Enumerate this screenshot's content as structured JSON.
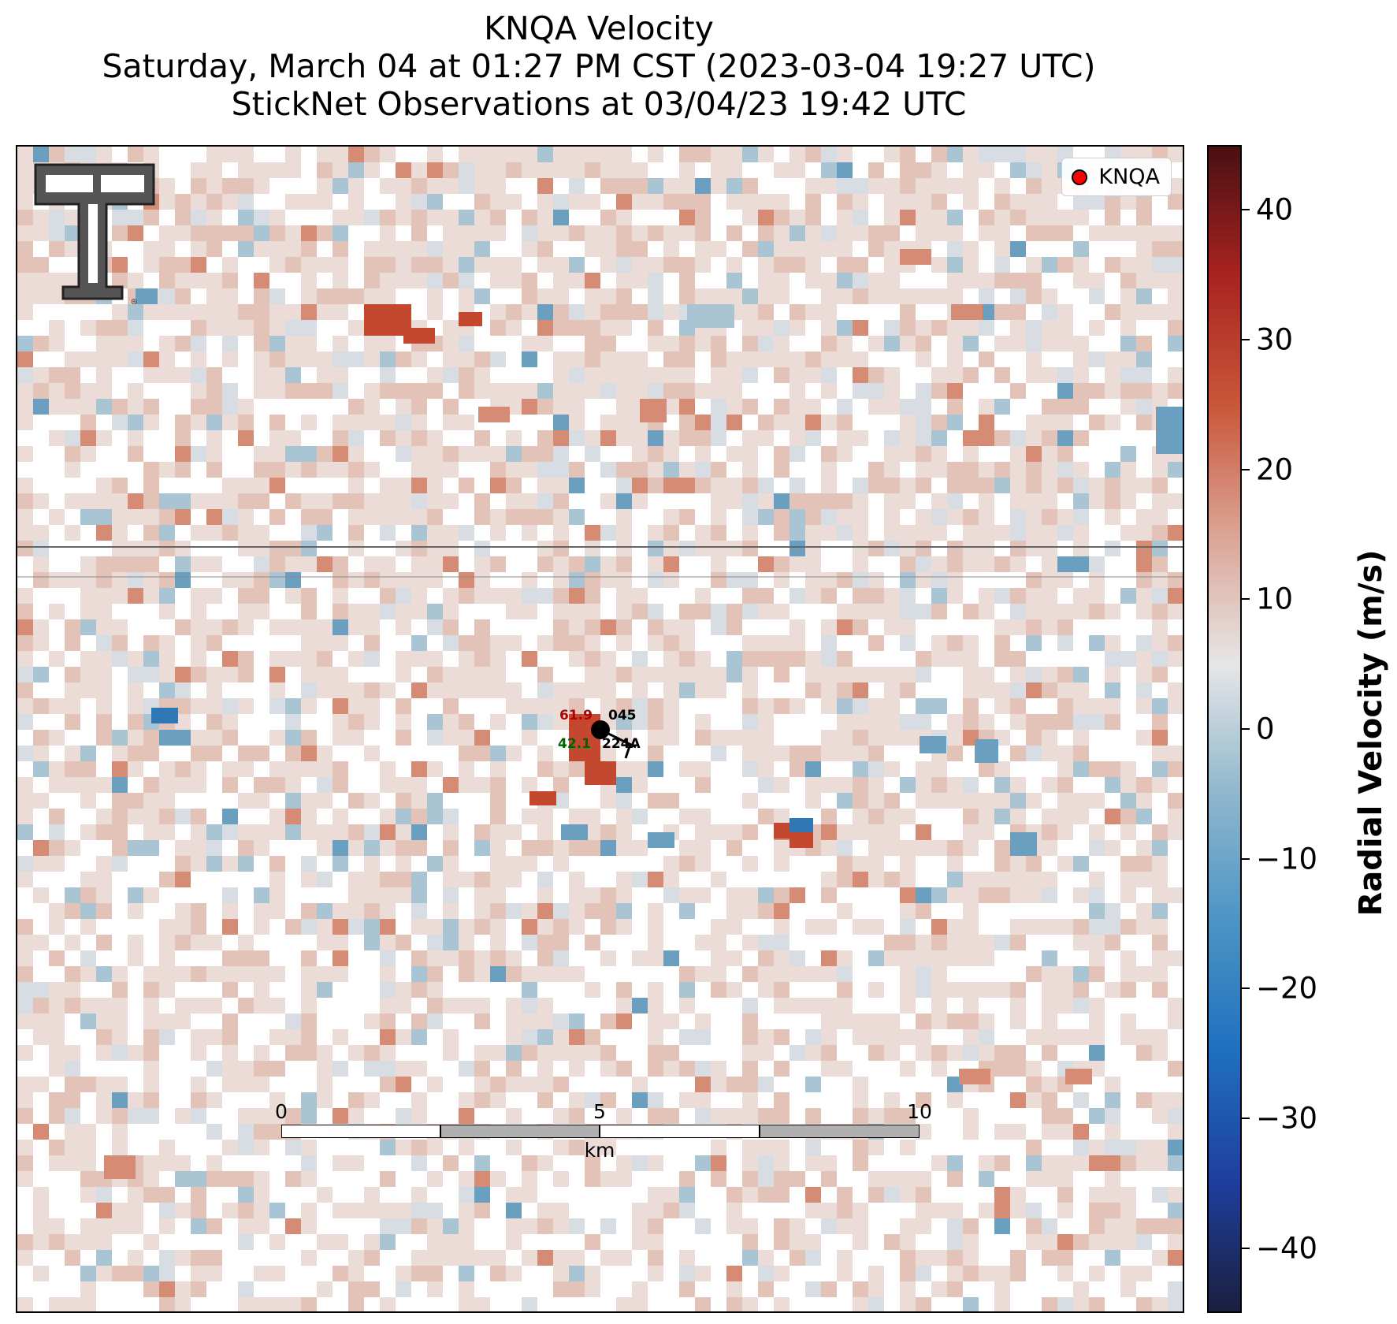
{
  "title": {
    "line1": "KNQA Velocity",
    "line2": "Saturday, March 04 at 01:27 PM CST (2023-03-04 19:27 UTC)",
    "line3": "StickNet Observations at 03/04/23 19:42 UTC"
  },
  "legend": {
    "label": "KNQA",
    "marker_color": "#ff0000"
  },
  "logo": {
    "name": "texas-tech-double-t-logo",
    "registered_mark": "®"
  },
  "station": {
    "temperature": "61.9",
    "dewpoint": "42.1",
    "wind_direction": "045",
    "station_id": "224A",
    "temperature_color": "#b00000",
    "dewpoint_color": "#006400"
  },
  "scalebar": {
    "ticks": [
      "0",
      "5",
      "10"
    ],
    "unit": "km"
  },
  "colorbar": {
    "label": "Radial Velocity (m/s)",
    "range": [
      -45,
      45
    ],
    "ticks": [
      "40",
      "30",
      "20",
      "10",
      "0",
      "−10",
      "−20",
      "−30",
      "−40"
    ],
    "colors": [
      "#1a1f3d",
      "#1f3e9e",
      "#1f6fbf",
      "#4a94c4",
      "#8fb7cd",
      "#e6e6e6",
      "#dba495",
      "#c9573a",
      "#a8241f",
      "#4a0f14"
    ]
  },
  "velocity_field": {
    "description_colors": {
      "faint_positive": "#ecdcd8",
      "light_positive": "#e3c3b8",
      "moderate_positive": "#d68c74",
      "strong_positive": "#c4472f",
      "faint_negative": "#d7dde2",
      "light_negative": "#a9c4d2",
      "moderate_negative": "#6a9fbf",
      "strong_negative": "#2f78b5"
    }
  }
}
